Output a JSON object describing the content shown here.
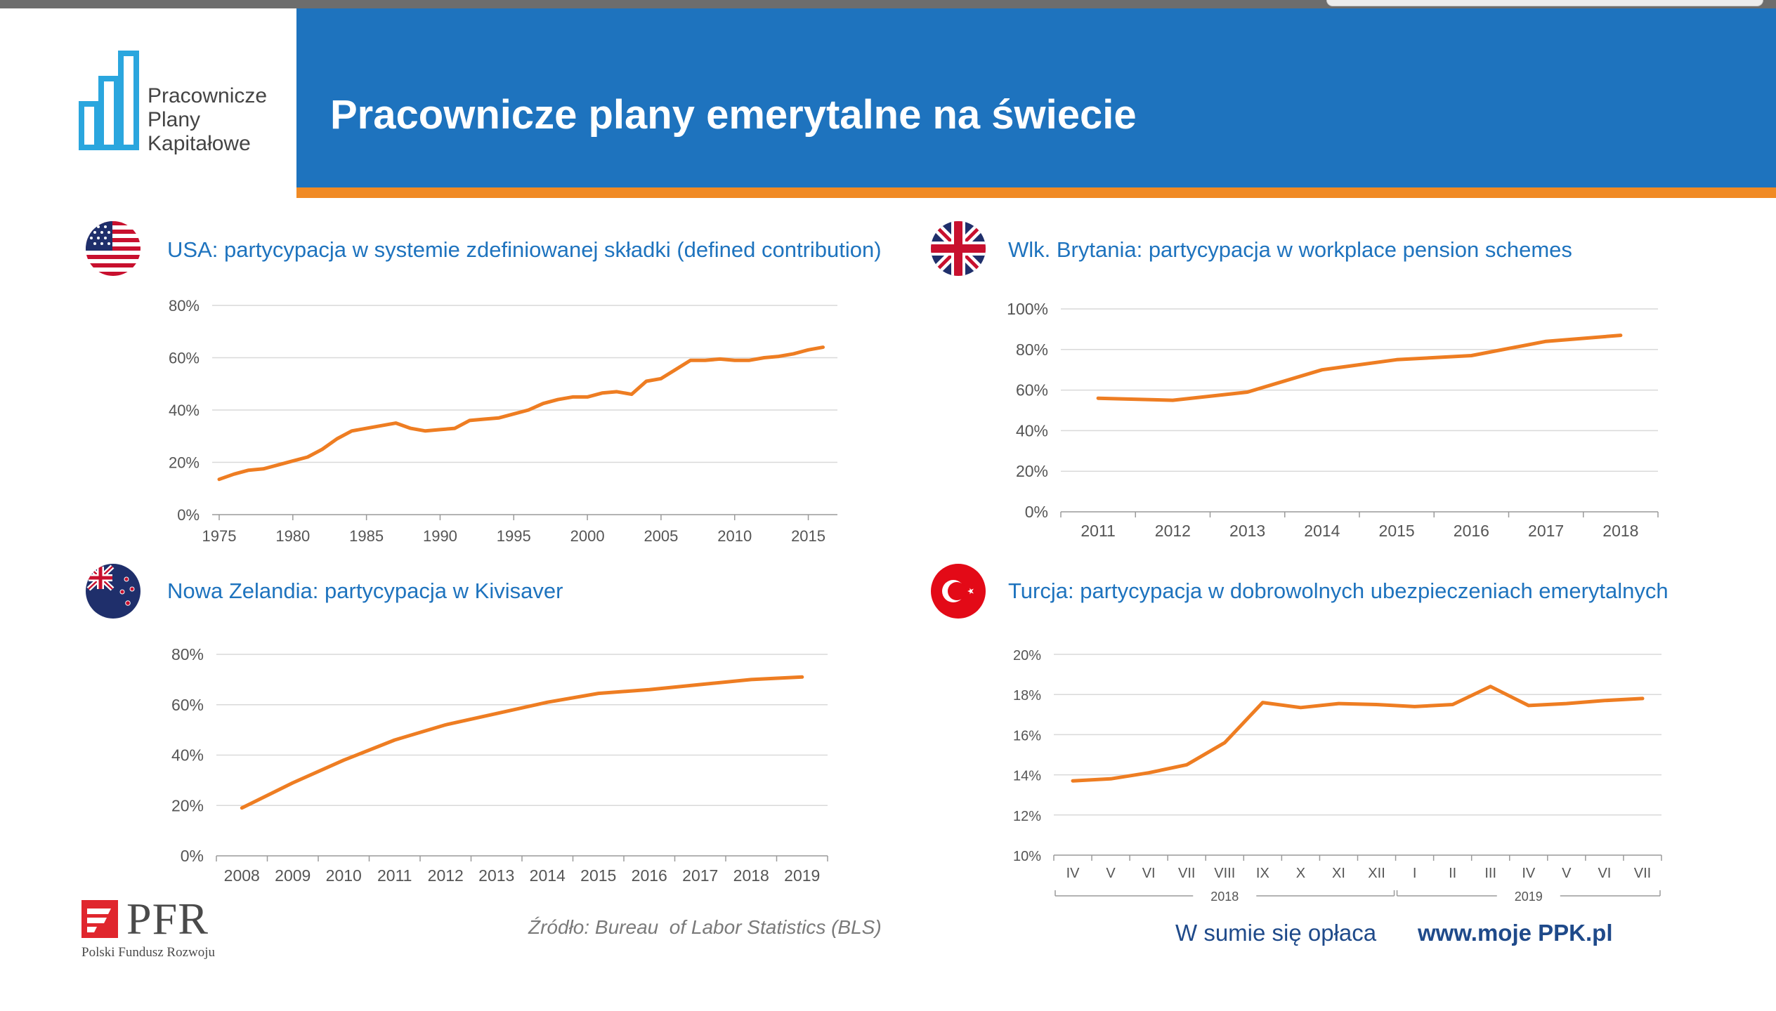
{
  "colors": {
    "banner": "#1e73be",
    "accent_orange": "#f08a24",
    "line": "#ee7d22",
    "title_blue": "#1e73be"
  },
  "logo": {
    "line1": "Pracownicze",
    "line2": "Plany",
    "line3": "Kapitałowe"
  },
  "header": {
    "title": "Pracownicze plany emerytalne na świecie"
  },
  "charts": {
    "usa": {
      "flag": "usa-flag-icon",
      "title": "USA: partycypacja w systemie zdefiniowanej składki (defined contribution)"
    },
    "uk": {
      "flag": "uk-flag-icon",
      "title": "Wlk. Brytania: partycypacja w workplace pension schemes"
    },
    "nz": {
      "flag": "nz-flag-icon",
      "title": "Nowa Zelandia: partycypacja w Kivisaver"
    },
    "tr": {
      "flag": "turkey-flag-icon",
      "title": "Turcja: partycypacja w dobrowolnych ubezpieczeniach emerytalnych"
    }
  },
  "chart_data": [
    {
      "id": "usa",
      "type": "line",
      "x": [
        1975,
        1976,
        1977,
        1978,
        1979,
        1980,
        1981,
        1982,
        1983,
        1984,
        1985,
        1986,
        1987,
        1988,
        1989,
        1990,
        1991,
        1992,
        1993,
        1994,
        1995,
        1996,
        1997,
        1998,
        1999,
        2000,
        2001,
        2002,
        2003,
        2004,
        2005,
        2006,
        2007,
        2008,
        2009,
        2010,
        2011,
        2012,
        2013,
        2014,
        2015,
        2016
      ],
      "values": [
        13.5,
        15.5,
        17,
        17.5,
        19,
        20.5,
        22,
        25,
        29,
        32,
        33,
        34,
        35,
        33,
        32,
        32.5,
        33,
        36,
        36.5,
        37,
        38.5,
        40,
        42.5,
        44,
        45,
        45,
        46.5,
        47,
        46,
        51,
        52,
        55.5,
        59,
        59,
        59.5,
        59,
        59,
        60,
        60.5,
        61.5,
        63,
        64
      ],
      "xlim": [
        1975,
        2016.5
      ],
      "ylim": [
        0,
        80
      ],
      "yticks": [
        "0%",
        "20%",
        "40%",
        "60%",
        "80%"
      ],
      "xticks": [
        "1975",
        "1980",
        "1985",
        "1990",
        "1995",
        "2000",
        "2005",
        "2010",
        "2015"
      ]
    },
    {
      "id": "uk",
      "type": "line",
      "categories": [
        "2011",
        "2012",
        "2013",
        "2014",
        "2015",
        "2016",
        "2017",
        "2018"
      ],
      "values": [
        56,
        55,
        59,
        70,
        75,
        77,
        84,
        87
      ],
      "ylim": [
        0,
        100
      ],
      "yticks": [
        "0%",
        "20%",
        "40%",
        "60%",
        "80%",
        "100%"
      ]
    },
    {
      "id": "nz",
      "type": "line",
      "categories": [
        "2008",
        "2009",
        "2010",
        "2011",
        "2012",
        "2013",
        "2014",
        "2015",
        "2016",
        "2017",
        "2018",
        "2019"
      ],
      "values": [
        19,
        29,
        38,
        46,
        52,
        56.5,
        61,
        64.5,
        66,
        68,
        70,
        71
      ],
      "ylim": [
        0,
        80
      ],
      "yticks": [
        "0%",
        "20%",
        "40%",
        "60%",
        "80%"
      ]
    },
    {
      "id": "tr",
      "type": "line",
      "categories": [
        "IV",
        "V",
        "VI",
        "VII",
        "VIII",
        "IX",
        "X",
        "XI",
        "XII",
        "I",
        "II",
        "III",
        "IV",
        "V",
        "VI",
        "VII"
      ],
      "values": [
        13.7,
        13.8,
        14.1,
        14.5,
        15.6,
        17.6,
        17.35,
        17.55,
        17.5,
        17.4,
        17.5,
        18.4,
        17.45,
        17.55,
        17.7,
        17.8
      ],
      "groups": [
        {
          "label": "2018",
          "start": 0,
          "end": 8
        },
        {
          "label": "2019",
          "start": 9,
          "end": 15
        }
      ],
      "ylim": [
        10,
        20
      ],
      "yticks": [
        "10%",
        "12%",
        "14%",
        "16%",
        "18%",
        "20%"
      ]
    }
  ],
  "footer": {
    "pfr_word": "PFR",
    "pfr_sub": "Polski Fundusz Rozwoju",
    "source": "Źródło: Bureau  of Labor Statistics (BLS)",
    "slogan": "W sumie się opłaca",
    "url": "www.moje PPK.pl"
  }
}
